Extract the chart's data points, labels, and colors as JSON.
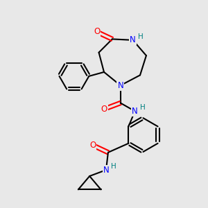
{
  "background_color": "#e8e8e8",
  "atom_colors": {
    "C": "#000000",
    "N": "#0000ff",
    "O": "#ff0000",
    "H": "#008080"
  },
  "bond_color": "#000000",
  "bond_width": 1.5,
  "font_size_atom": 8.5,
  "font_size_H": 7.5
}
